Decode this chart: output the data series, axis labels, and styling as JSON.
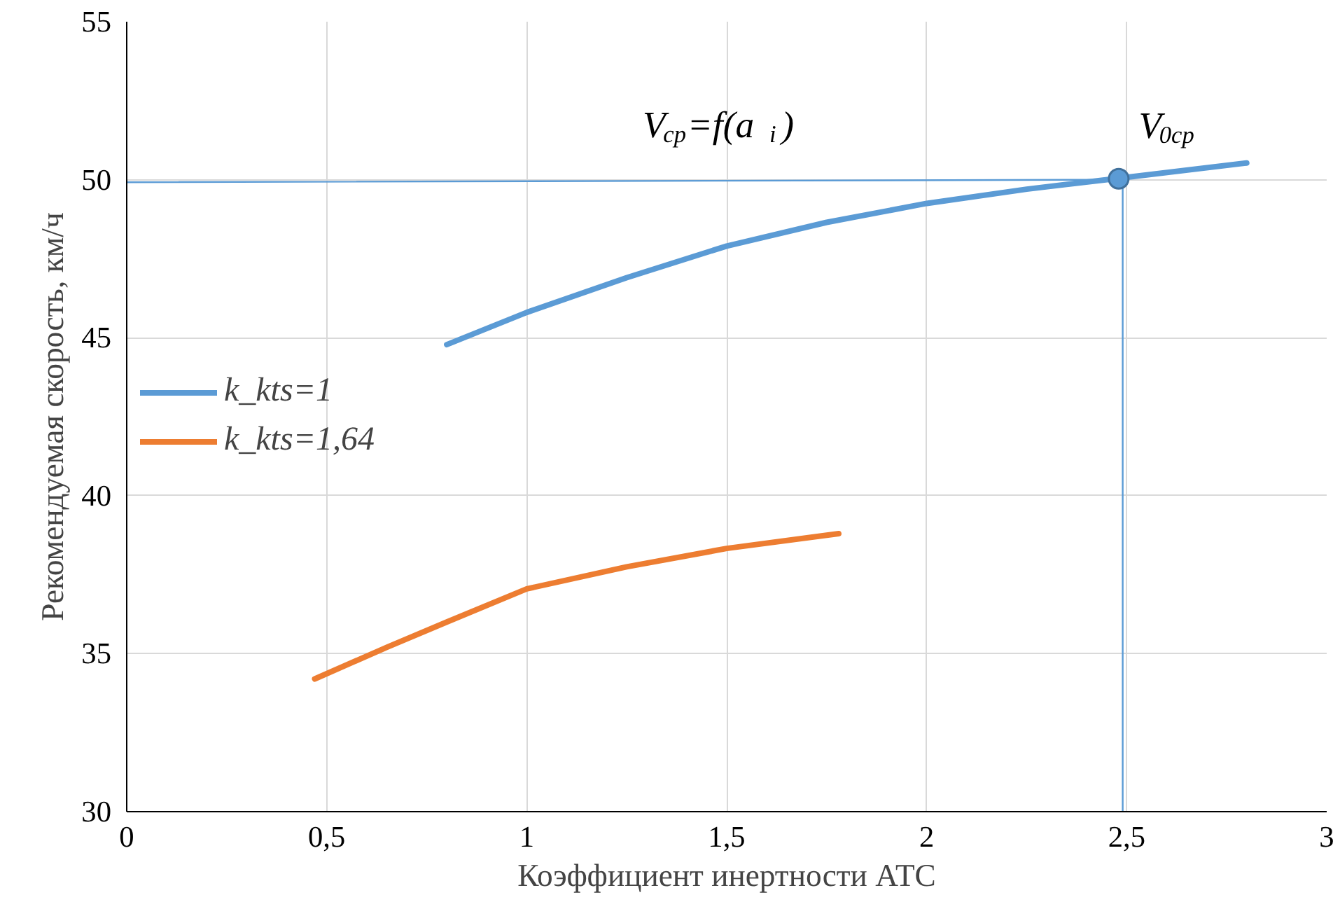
{
  "chart_data": {
    "type": "line",
    "xlabel": "Коэффициент инертности АТС",
    "ylabel": "Рекомендуемая скорость, км/ч",
    "xlim": [
      0,
      3
    ],
    "ylim": [
      30,
      55
    ],
    "xticks": [
      0,
      {
        "value": 0.5,
        "label": "0,5"
      },
      1,
      {
        "value": 1.5,
        "label": "1,5"
      },
      2,
      {
        "value": 2.5,
        "label": "2,5"
      },
      3
    ],
    "yticks": [
      30,
      35,
      40,
      45,
      50,
      55
    ],
    "grid": true,
    "legend": "left",
    "series": [
      {
        "name": "k_kts=1",
        "color": "#5b9bd5",
        "x": [
          0.8,
          1.0,
          1.25,
          1.5,
          1.75,
          2.0,
          2.25,
          2.47,
          2.8
        ],
        "values": [
          44.78,
          45.8,
          46.9,
          47.9,
          48.65,
          49.25,
          49.7,
          50.03,
          50.53
        ]
      },
      {
        "name": "k_kts=1,64",
        "color": "#ed7d31",
        "x": [
          0.47,
          0.65,
          0.8,
          1.0,
          1.25,
          1.5,
          1.78
        ],
        "values": [
          34.2,
          35.2,
          36.0,
          37.05,
          37.75,
          38.33,
          38.8
        ]
      },
      {
        "type": "line",
        "color": "#5b9bd5",
        "x": [
          0,
          2.49,
          2.49
        ],
        "values": [
          49.92,
          50.0,
          30
        ]
      },
      {
        "type": "scatter",
        "color": "#5b9bd5",
        "marker": "circle",
        "x": [
          2.48
        ],
        "values": [
          50.03
        ]
      }
    ],
    "annotations": [
      "V$_{cp}$=f(a$_{i}$)",
      {
        "text": "V$_{0cp}$",
        "x": 2.48,
        "y": 50.03
      }
    ]
  }
}
